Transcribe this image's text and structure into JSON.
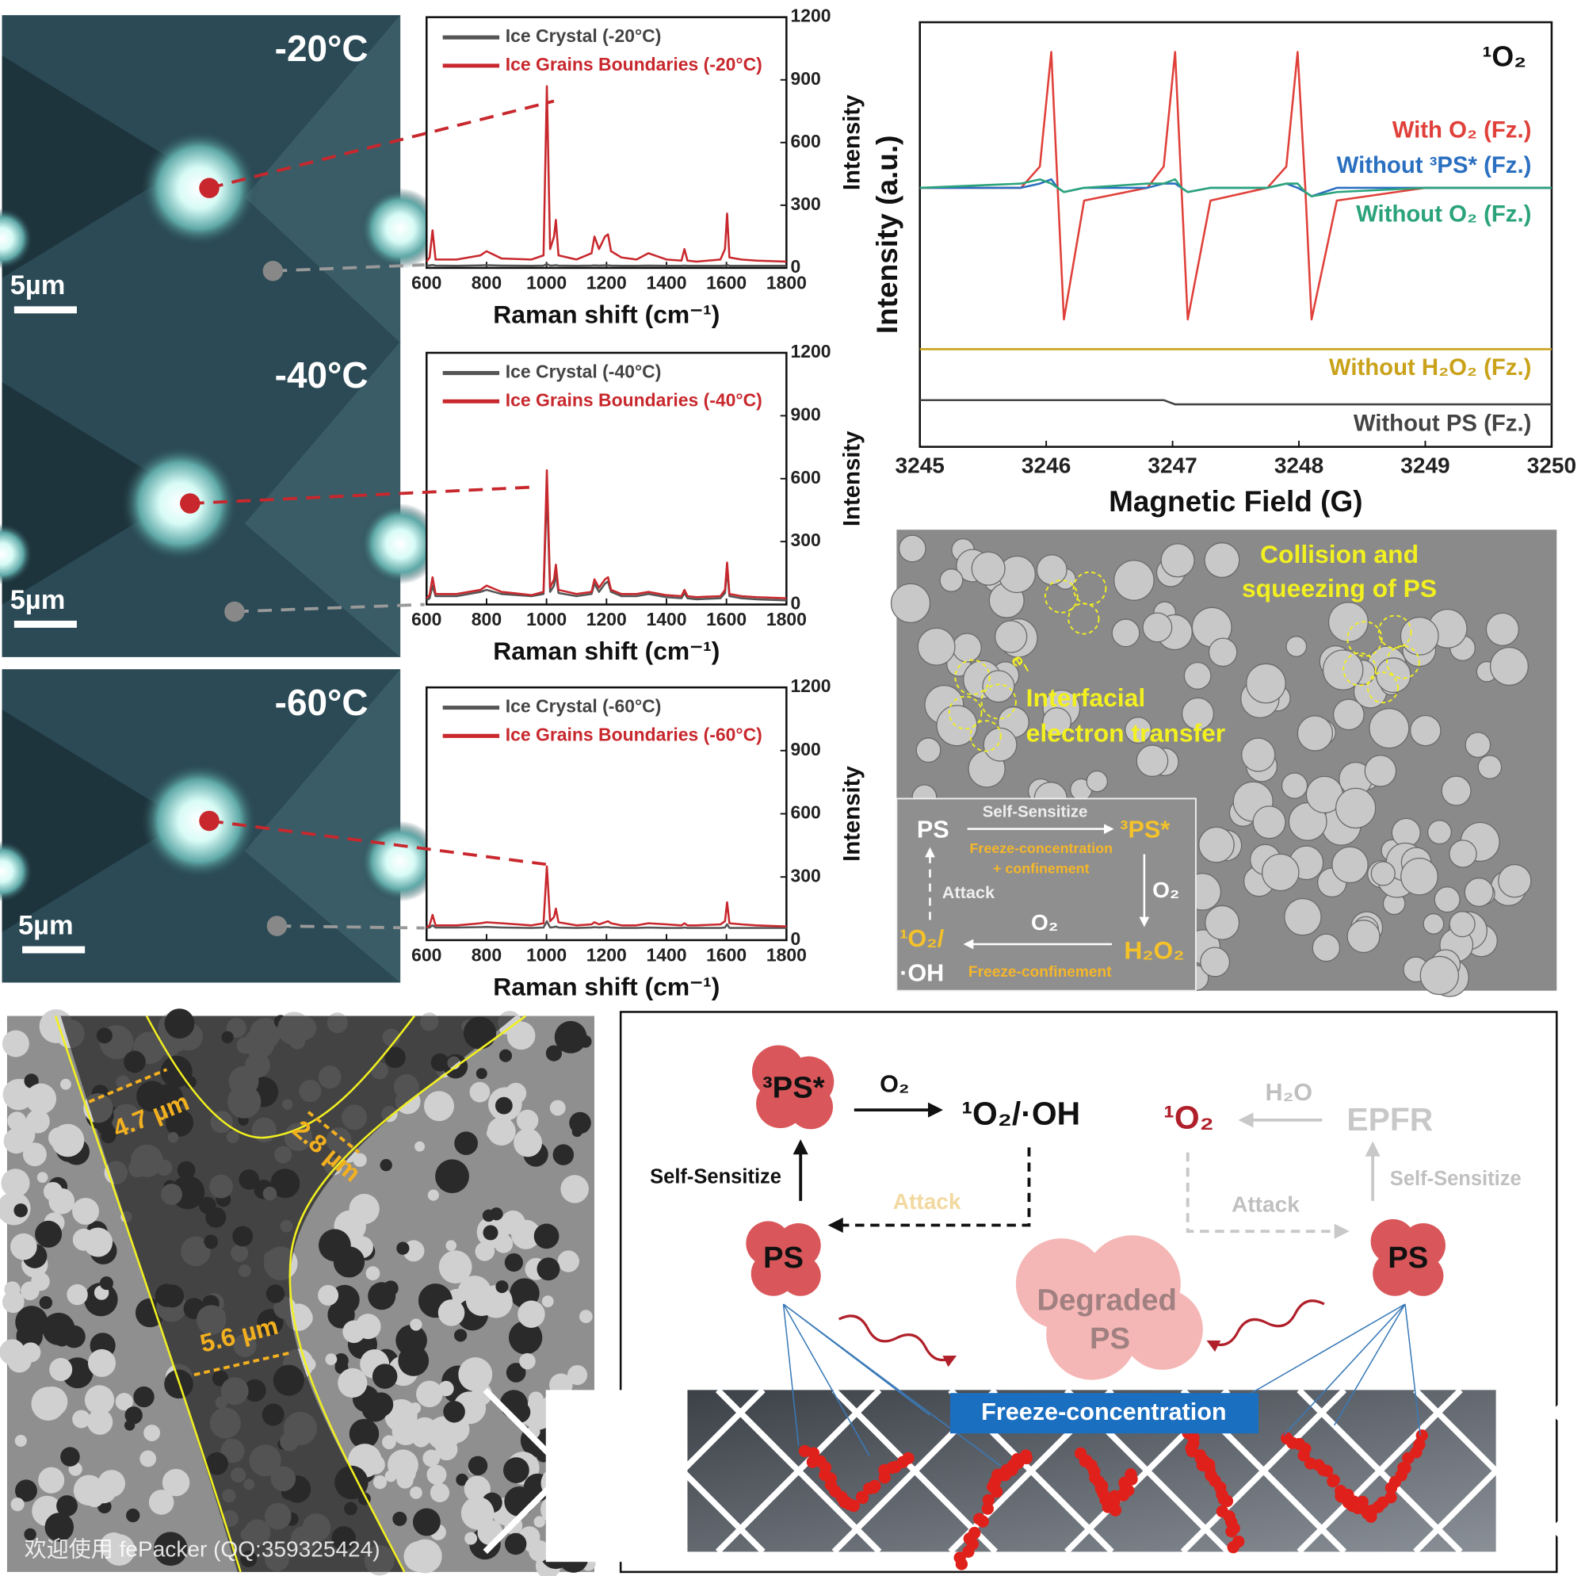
{
  "chart_data": [
    {
      "type": "line",
      "xlabel": "Raman shift (cm⁻¹)",
      "ylabel": "Intensity",
      "legend": "upper left",
      "x": [
        600,
        610,
        620,
        630,
        700,
        780,
        800,
        850,
        950,
        990,
        1001,
        1012,
        1025,
        1031,
        1040,
        1100,
        1150,
        1160,
        1175,
        1195,
        1205,
        1215,
        1250,
        1300,
        1340,
        1400,
        1450,
        1460,
        1470,
        1500,
        1580,
        1595,
        1602,
        1610,
        1650,
        1700,
        1800
      ],
      "xlim": [
        600,
        1800
      ],
      "ylim": [
        0,
        1200
      ],
      "xticks": [
        600,
        800,
        1000,
        1200,
        1400,
        1600,
        1800
      ],
      "yticks": [
        0,
        300,
        600,
        900,
        1200
      ],
      "series": [
        {
          "name": "Ice Crystal (-20°C)",
          "color": "#555555",
          "values": [
            10,
            12,
            14,
            11,
            10,
            12,
            13,
            11,
            10,
            11,
            18,
            11,
            12,
            13,
            11,
            10,
            11,
            12,
            11,
            12,
            12,
            11,
            10,
            10,
            11,
            10,
            10,
            11,
            10,
            10,
            10,
            11,
            14,
            10,
            10,
            10,
            10
          ]
        },
        {
          "name": "Ice Grains Boundaries (-20°C)",
          "color": "#c8282d",
          "values": [
            30,
            50,
            180,
            40,
            40,
            60,
            80,
            45,
            40,
            60,
            870,
            90,
            150,
            230,
            60,
            40,
            70,
            150,
            90,
            150,
            160,
            80,
            50,
            40,
            70,
            40,
            35,
            90,
            35,
            30,
            40,
            90,
            260,
            50,
            40,
            35,
            30
          ]
        }
      ]
    },
    {
      "type": "line",
      "xlabel": "Raman shift (cm⁻¹)",
      "ylabel": "Intensity",
      "legend": "upper left",
      "x": [
        600,
        610,
        620,
        630,
        700,
        780,
        800,
        850,
        950,
        990,
        1001,
        1012,
        1025,
        1031,
        1040,
        1100,
        1150,
        1160,
        1175,
        1195,
        1205,
        1215,
        1250,
        1300,
        1340,
        1400,
        1450,
        1460,
        1470,
        1500,
        1580,
        1595,
        1602,
        1610,
        1650,
        1700,
        1800
      ],
      "xlim": [
        600,
        1800
      ],
      "ylim": [
        0,
        1200
      ],
      "xticks": [
        600,
        800,
        1000,
        1200,
        1400,
        1600,
        1800
      ],
      "yticks": [
        0,
        300,
        600,
        900,
        1200
      ],
      "series": [
        {
          "name": "Ice Crystal (-40°C)",
          "color": "#555555",
          "values": [
            20,
            30,
            90,
            40,
            40,
            60,
            70,
            50,
            40,
            50,
            560,
            60,
            90,
            150,
            55,
            40,
            50,
            100,
            60,
            100,
            110,
            60,
            40,
            40,
            50,
            35,
            30,
            55,
            30,
            25,
            30,
            55,
            170,
            40,
            30,
            25,
            20
          ]
        },
        {
          "name": "Ice Grains Boundaries (-40°C)",
          "color": "#c8282d",
          "values": [
            30,
            45,
            130,
            50,
            50,
            70,
            90,
            60,
            45,
            60,
            640,
            80,
            120,
            190,
            70,
            50,
            60,
            120,
            80,
            120,
            130,
            70,
            50,
            50,
            60,
            45,
            40,
            70,
            40,
            35,
            40,
            70,
            200,
            50,
            40,
            35,
            30
          ]
        }
      ]
    },
    {
      "type": "line",
      "xlabel": "Raman shift (cm⁻¹)",
      "ylabel": "Intensity",
      "legend": "upper left",
      "x": [
        600,
        610,
        620,
        630,
        700,
        780,
        800,
        850,
        950,
        990,
        1001,
        1012,
        1025,
        1031,
        1040,
        1100,
        1150,
        1160,
        1175,
        1195,
        1205,
        1215,
        1250,
        1300,
        1340,
        1400,
        1450,
        1460,
        1470,
        1500,
        1580,
        1595,
        1602,
        1610,
        1650,
        1700,
        1800
      ],
      "xlim": [
        600,
        1800
      ],
      "ylim": [
        0,
        1200
      ],
      "xticks": [
        600,
        800,
        1000,
        1200,
        1400,
        1600,
        1800
      ],
      "yticks": [
        0,
        300,
        600,
        900,
        1200
      ],
      "series": [
        {
          "name": "Ice Crystal (-60°C)",
          "color": "#555555",
          "values": [
            58,
            60,
            70,
            60,
            60,
            62,
            63,
            60,
            58,
            60,
            90,
            60,
            62,
            65,
            60,
            58,
            60,
            62,
            60,
            62,
            62,
            60,
            58,
            58,
            60,
            58,
            58,
            60,
            58,
            58,
            58,
            60,
            75,
            58,
            58,
            58,
            58
          ]
        },
        {
          "name": "Ice Grains Boundaries (-60°C)",
          "color": "#c8282d",
          "values": [
            60,
            70,
            120,
            70,
            70,
            80,
            85,
            80,
            70,
            80,
            350,
            90,
            110,
            150,
            85,
            70,
            75,
            85,
            75,
            85,
            90,
            80,
            70,
            70,
            80,
            75,
            70,
            80,
            70,
            70,
            75,
            90,
            180,
            80,
            75,
            70,
            65
          ]
        }
      ]
    },
    {
      "type": "line",
      "xlabel": "Magnetic Field (G)",
      "ylabel": "Intensity (a.u.)",
      "annotation": "¹O₂",
      "legend": "inline",
      "x": [
        3245,
        3245.8,
        3245.95,
        3246.04,
        3246.09,
        3246.14,
        3246.3,
        3246.8,
        3246.93,
        3247.02,
        3247.07,
        3247.12,
        3247.3,
        3247.75,
        3247.9,
        3247.99,
        3248.05,
        3248.1,
        3248.3,
        3249,
        3250
      ],
      "xlim": [
        3245,
        3250
      ],
      "ylim": [
        0,
        100
      ],
      "xticks": [
        3245,
        3246,
        3247,
        3248,
        3249,
        3250
      ],
      "series": [
        {
          "name": "With O₂ (Fz.)",
          "color": "#e0403a",
          "values": [
            61,
            61,
            66,
            93,
            61,
            30,
            58,
            61,
            66,
            93,
            61,
            30,
            58,
            61,
            66,
            93,
            61,
            30,
            58,
            61,
            61
          ]
        },
        {
          "name": "Without ³PS* (Fz.)",
          "color": "#2a6fc0",
          "values": [
            61,
            61,
            62,
            63,
            61,
            60,
            61,
            61,
            62,
            62,
            61,
            60,
            61,
            61,
            62,
            61,
            60,
            59,
            61,
            61,
            61
          ]
        },
        {
          "name": "Without O₂ (Fz.)",
          "color": "#2aa37a",
          "values": [
            61,
            62,
            63,
            62,
            61,
            60,
            61,
            62,
            62,
            63,
            61,
            60,
            61,
            61,
            62,
            62,
            60,
            59,
            60,
            61,
            61
          ]
        },
        {
          "name": "Without H₂O₂ (Fz.)",
          "color": "#c9a21a",
          "values": [
            23,
            23,
            23,
            23,
            23,
            23,
            23,
            23,
            23,
            23,
            23,
            23,
            23,
            23,
            23,
            23,
            23,
            23,
            23,
            23,
            23
          ]
        },
        {
          "name": "Without PS (Fz.)",
          "color": "#444444",
          "values": [
            11,
            11,
            11,
            11,
            11,
            11,
            11,
            11,
            11,
            10,
            10,
            10,
            10,
            10,
            10,
            10,
            10,
            10,
            10,
            10,
            10
          ]
        }
      ]
    }
  ],
  "micrographs": [
    {
      "temperature": "-20°C",
      "scale": "5µm"
    },
    {
      "temperature": "-40°C",
      "scale": "5µm"
    },
    {
      "temperature": "-60°C",
      "scale": "5µm"
    }
  ],
  "sem": {
    "collision": "Collision and",
    "squeezing": "squeezing of PS",
    "interfacial": "Interfacial",
    "electron": "electron transfer",
    "electron_symbol": "e⁻",
    "inset": {
      "ps": "PS",
      "self_sensitize": "Self-Sensitize",
      "ps_excited": "³PS*",
      "freeze_concentration": "Freeze-concentration",
      "confinement": "+ confinement",
      "o2_right": "O₂",
      "attack": "Attack",
      "o2_bottom": "O₂",
      "singlet": "¹O₂/",
      "hydroxyl": "·OH",
      "h2o2": "H₂O₂",
      "freeze_confinement": "Freeze-confinement"
    }
  },
  "tem": {
    "width_1": "4.7 µm",
    "width_2": "2.8 µm",
    "width_3": "5.6 µm",
    "watermark": "欢迎使用 fePacker (QQ:359325424)"
  },
  "schematic": {
    "ps_excited": "³PS*",
    "o2": "O₂",
    "product": "¹O₂/·OH",
    "self_sensitize_left": "Self-Sensitize",
    "attack_left": "Attack",
    "ps_left": "PS",
    "singlet_oxygen": "¹O₂",
    "water": "H₂O",
    "epfr": "EPFR",
    "self_sensitize_right": "Self-Sensitize",
    "attack_right": "Attack",
    "ps_right": "PS",
    "degraded": "Degraded",
    "degraded_ps": "PS",
    "freeze": "Freeze-concentration"
  }
}
